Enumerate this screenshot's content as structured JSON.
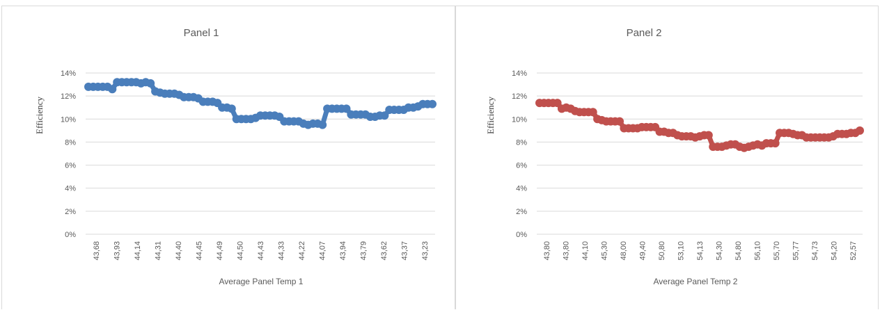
{
  "chart_data": [
    {
      "type": "line",
      "title": "Panel 1",
      "xlabel": "Average Panel Temp 1",
      "ylabel": "Efficiency",
      "color": "#4a7ebb",
      "ylim": [
        0,
        0.14
      ],
      "yticks": [
        "0%",
        "2%",
        "4%",
        "6%",
        "8%",
        "10%",
        "12%",
        "14%"
      ],
      "xticks": [
        "43,68",
        "43,93",
        "44,14",
        "44,31",
        "44,40",
        "44,45",
        "44,49",
        "44,50",
        "44,43",
        "44,33",
        "44,22",
        "44,07",
        "43,94",
        "43,79",
        "43,62",
        "43,37",
        "43,23"
      ],
      "values": [
        12.8,
        12.8,
        12.8,
        12.8,
        12.8,
        12.6,
        13.2,
        13.2,
        13.2,
        13.2,
        13.2,
        13.1,
        13.2,
        13.1,
        12.4,
        12.3,
        12.2,
        12.2,
        12.2,
        12.1,
        11.9,
        11.9,
        11.9,
        11.8,
        11.5,
        11.5,
        11.5,
        11.4,
        11.0,
        11.0,
        10.9,
        10.0,
        10.0,
        10.0,
        10.0,
        10.1,
        10.3,
        10.3,
        10.3,
        10.3,
        10.2,
        9.8,
        9.8,
        9.8,
        9.8,
        9.6,
        9.5,
        9.6,
        9.6,
        9.5,
        10.9,
        10.9,
        10.9,
        10.9,
        10.9,
        10.4,
        10.4,
        10.4,
        10.4,
        10.2,
        10.2,
        10.3,
        10.3,
        10.8,
        10.8,
        10.8,
        10.8,
        11.0,
        11.0,
        11.1,
        11.3,
        11.3,
        11.3
      ]
    },
    {
      "type": "line",
      "title": "Panel 2",
      "xlabel": "Average Panel Temp 2",
      "ylabel": "Efficiency",
      "color": "#c0504d",
      "ylim": [
        0,
        0.14
      ],
      "yticks": [
        "0%",
        "2%",
        "4%",
        "6%",
        "8%",
        "10%",
        "12%",
        "14%"
      ],
      "xticks": [
        "43,80",
        "43,80",
        "44,10",
        "45,30",
        "48,00",
        "49,40",
        "50,80",
        "53,10",
        "54,13",
        "54,30",
        "54,80",
        "56,10",
        "55,70",
        "55,77",
        "54,73",
        "54,20",
        "52,57"
      ],
      "values": [
        11.4,
        11.4,
        11.4,
        11.4,
        11.4,
        10.9,
        11.0,
        10.9,
        10.7,
        10.6,
        10.6,
        10.6,
        10.6,
        10.0,
        9.9,
        9.8,
        9.8,
        9.8,
        9.8,
        9.2,
        9.2,
        9.2,
        9.2,
        9.3,
        9.3,
        9.3,
        9.3,
        8.9,
        8.9,
        8.8,
        8.8,
        8.6,
        8.5,
        8.5,
        8.5,
        8.4,
        8.5,
        8.6,
        8.6,
        7.6,
        7.6,
        7.6,
        7.7,
        7.8,
        7.8,
        7.6,
        7.5,
        7.6,
        7.7,
        7.8,
        7.7,
        7.9,
        7.9,
        7.9,
        8.8,
        8.8,
        8.8,
        8.7,
        8.6,
        8.6,
        8.4,
        8.4,
        8.4,
        8.4,
        8.4,
        8.4,
        8.5,
        8.7,
        8.7,
        8.7,
        8.8,
        8.8,
        9.0
      ]
    }
  ]
}
